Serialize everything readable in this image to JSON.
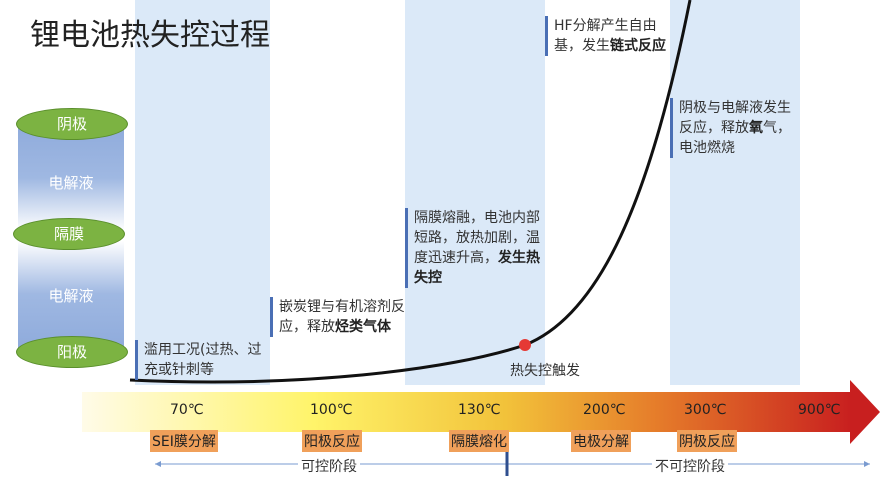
{
  "title": "锂电池热失控过程",
  "cylinder": {
    "top": "阴极",
    "upper_electrolyte": "电解液",
    "separator": "隔膜",
    "lower_electrolyte": "电解液",
    "bottom": "阳极"
  },
  "notes": [
    {
      "text": "滥用工况(过热、过充或针刺等",
      "bold": ""
    },
    {
      "text": "嵌炭锂与有机溶剂反应，释放",
      "bold": "烃类气体"
    },
    {
      "text": "隔膜熔融，电池内部短路，放热加剧，温度迅速升高，",
      "bold": "发生热失控"
    },
    {
      "text": "HF分解产生自由基，发生",
      "bold": "链式反应"
    },
    {
      "text": "阴极与电解液发生反应，释放",
      "bold": "氧",
      "tail": "气，电池燃烧"
    }
  ],
  "trigger_label": "热失控触发",
  "temperatures": [
    "70℃",
    "100℃",
    "130℃",
    "200℃",
    "300℃",
    "900℃"
  ],
  "stages": [
    "SEI膜分解",
    "阳极反应",
    "隔膜熔化",
    "电极分解",
    "阴极反应"
  ],
  "phases": {
    "controllable": "可控阶段",
    "uncontrollable": "不可控阶段"
  },
  "colors": {
    "band": "#dbe9f8",
    "stage": "#f0a05a",
    "ellipse": "#7cb342",
    "curve": "#111111",
    "trigger": "#e53935"
  }
}
